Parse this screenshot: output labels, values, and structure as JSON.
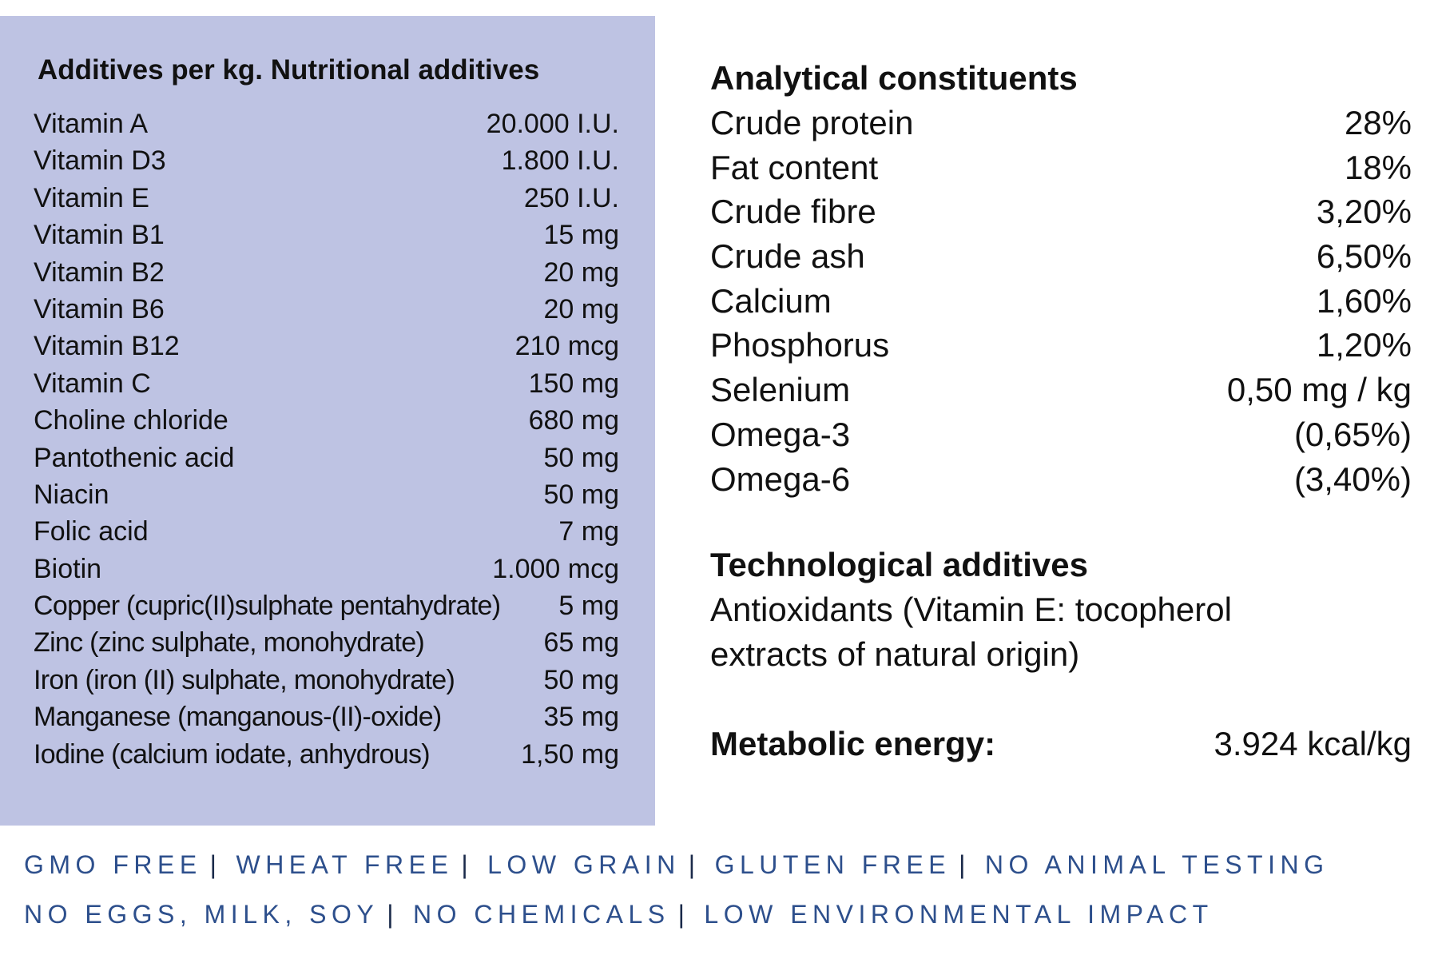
{
  "nutritional_additives": {
    "title": "Additives per kg. Nutritional additives",
    "items": [
      {
        "name": "Vitamin A",
        "value": "20.000 I.U."
      },
      {
        "name": "Vitamin D3",
        "value": "1.800 I.U."
      },
      {
        "name": "Vitamin E",
        "value": "250 I.U."
      },
      {
        "name": "Vitamin B1",
        "value": "15 mg"
      },
      {
        "name": "Vitamin B2",
        "value": "20 mg"
      },
      {
        "name": "Vitamin B6",
        "value": "20 mg"
      },
      {
        "name": "Vitamin B12",
        "value": "210 mcg"
      },
      {
        "name": "Vitamin C",
        "value": "150 mg"
      },
      {
        "name": "Choline chloride",
        "value": "680 mg"
      },
      {
        "name": "Pantothenic acid",
        "value": "50 mg"
      },
      {
        "name": "Niacin",
        "value": "50 mg"
      },
      {
        "name": "Folic acid",
        "value": "7 mg"
      },
      {
        "name": "Biotin",
        "value": "1.000 mcg"
      },
      {
        "name": "Copper (cupric(II)sulphate pentahydrate)",
        "value": "5 mg"
      },
      {
        "name": "Zinc (zinc sulphate, monohydrate)",
        "value": "65 mg"
      },
      {
        "name": "Iron (iron (II) sulphate, monohydrate)",
        "value": "50 mg"
      },
      {
        "name": "Manganese (manganous-(II)-oxide)",
        "value": "35 mg"
      },
      {
        "name": "Iodine (calcium iodate, anhydrous)",
        "value": "1,50 mg"
      }
    ]
  },
  "analytical_constituents": {
    "title": "Analytical constituents",
    "items": [
      {
        "name": "Crude protein",
        "value": "28%"
      },
      {
        "name": "Fat content",
        "value": "18%"
      },
      {
        "name": "Crude fibre",
        "value": "3,20%"
      },
      {
        "name": "Crude ash",
        "value": "6,50%"
      },
      {
        "name": "Calcium",
        "value": "1,60%"
      },
      {
        "name": "Phosphorus",
        "value": "1,20%"
      },
      {
        "name": "Selenium",
        "value": "0,50 mg / kg"
      },
      {
        "name": "Omega-3",
        "value": "(0,65%)"
      },
      {
        "name": "Omega-6",
        "value": "(3,40%)"
      }
    ]
  },
  "technological_additives": {
    "title": "Technological additives",
    "line1": "Antioxidants (Vitamin E: tocopherol",
    "line2": "extracts of natural origin)"
  },
  "metabolic_energy": {
    "label": "Metabolic energy:",
    "value": "3.924 kcal/kg"
  },
  "claims": {
    "separator": "|",
    "line1": [
      "GMO FREE",
      "WHEAT FREE",
      "LOW GRAIN",
      "GLUTEN FREE",
      "NO ANIMAL TESTING"
    ],
    "line2": [
      "NO EGGS, MILK, SOY",
      "NO CHEMICALS",
      "LOW ENVIRONMENTAL IMPACT"
    ]
  },
  "colors": {
    "panel_bg": "#bec3e3",
    "claims_text": "#2d4f8c"
  }
}
